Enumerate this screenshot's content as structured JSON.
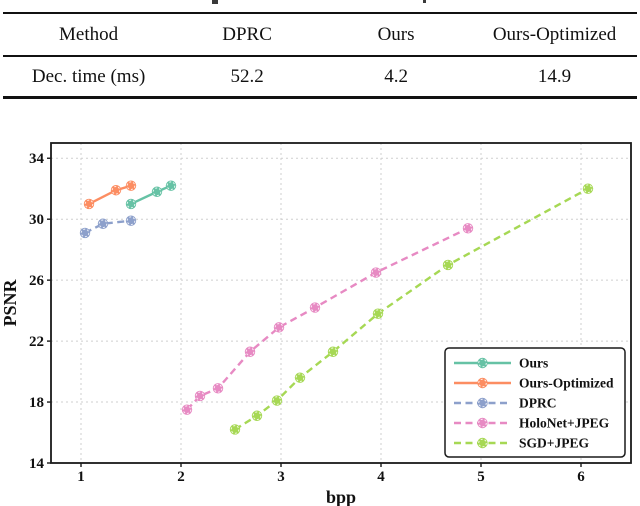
{
  "table": {
    "headers": [
      "Method",
      "DPRC",
      "Ours",
      "Ours-Optimized"
    ],
    "rows": [
      [
        "Dec. time (ms)",
        "52.2",
        "4.2",
        "14.9"
      ]
    ]
  },
  "chart_data": {
    "type": "line",
    "title": "",
    "xlabel": "bpp",
    "ylabel": "PSNR",
    "xlim": [
      0.7,
      6.5
    ],
    "ylim": [
      14,
      35
    ],
    "xticks": [
      1,
      2,
      3,
      4,
      5,
      6
    ],
    "yticks": [
      14,
      18,
      22,
      26,
      30,
      34
    ],
    "grid": "dashed",
    "legend_position": "lower right",
    "series": [
      {
        "name": "Ours",
        "color": "#66c2a5",
        "dash": "solid",
        "points": [
          [
            1.5,
            31.0
          ],
          [
            1.76,
            31.8
          ],
          [
            1.9,
            32.2
          ]
        ]
      },
      {
        "name": "Ours-Optimized",
        "color": "#fc8d62",
        "dash": "solid",
        "points": [
          [
            1.08,
            31.0
          ],
          [
            1.35,
            31.9
          ],
          [
            1.5,
            32.2
          ]
        ]
      },
      {
        "name": "DPRC",
        "color": "#8da0cb",
        "dash": "dashed",
        "points": [
          [
            1.04,
            29.1
          ],
          [
            1.22,
            29.7
          ],
          [
            1.5,
            29.9
          ]
        ]
      },
      {
        "name": "HoloNet+JPEG",
        "color": "#e78ac3",
        "dash": "dashed",
        "points": [
          [
            2.06,
            17.5
          ],
          [
            2.19,
            18.4
          ],
          [
            2.37,
            18.9
          ],
          [
            2.69,
            21.3
          ],
          [
            2.98,
            22.9
          ],
          [
            3.34,
            24.2
          ],
          [
            3.95,
            26.5
          ],
          [
            4.87,
            29.4
          ]
        ]
      },
      {
        "name": "SGD+JPEG",
        "color": "#a6d854",
        "dash": "dashed",
        "points": [
          [
            2.54,
            16.2
          ],
          [
            2.76,
            17.1
          ],
          [
            2.96,
            18.1
          ],
          [
            3.19,
            19.6
          ],
          [
            3.52,
            21.3
          ],
          [
            3.97,
            23.8
          ],
          [
            4.67,
            27.0
          ],
          [
            6.07,
            32.0
          ]
        ]
      }
    ]
  }
}
